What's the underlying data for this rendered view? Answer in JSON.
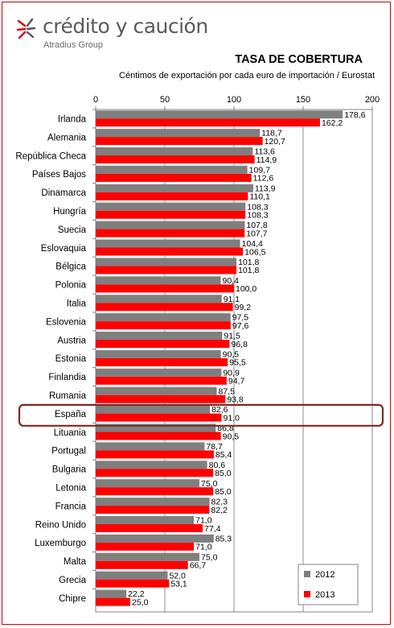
{
  "brand": {
    "name": "crédito y caución",
    "group": "Atradius Group"
  },
  "colors": {
    "s2012": "#7f7f7f",
    "s2013": "#ff0000",
    "brand_red": "#e30613",
    "highlight": "#7b2a25"
  },
  "chart_data": {
    "type": "bar",
    "orientation": "horizontal",
    "title": "TASA DE COBERTURA",
    "subtitle": "Céntimos de exportación por cada euro de importación / Eurostat",
    "xlim": [
      0,
      200
    ],
    "xticks": [
      0,
      50,
      100,
      150,
      200
    ],
    "xtick_labels": [
      "0",
      "50",
      "100",
      "150",
      "200"
    ],
    "grid": true,
    "legend_position": "bottom-right",
    "highlighted_category": "España",
    "categories": [
      "Irlanda",
      "Alemania",
      "República Checa",
      "Países Bajos",
      "Dinamarca",
      "Hungría",
      "Suecia",
      "Eslovaquia",
      "Bélgica",
      "Polonia",
      "Italia",
      "Eslovenia",
      "Austria",
      "Estonia",
      "Finlandia",
      "Rumania",
      "España",
      "Lituania",
      "Portugal",
      "Bulgaria",
      "Letonia",
      "Francia",
      "Reino Unido",
      "Luxemburgo",
      "Malta",
      "Grecia",
      "Chipre"
    ],
    "series": [
      {
        "name": "2012",
        "values": [
          178.6,
          118.7,
          113.6,
          109.7,
          113.9,
          108.3,
          107.8,
          104.4,
          101.8,
          90.4,
          91.1,
          97.5,
          91.5,
          90.5,
          90.9,
          87.5,
          82.6,
          86.8,
          78.7,
          80.6,
          75.0,
          82.3,
          71.0,
          85.3,
          75.0,
          52.0,
          22.2
        ]
      },
      {
        "name": "2013",
        "values": [
          162.2,
          120.7,
          114.9,
          112.6,
          110.1,
          108.3,
          107.7,
          106.5,
          101.8,
          100.0,
          99.2,
          97.6,
          96.8,
          95.5,
          94.7,
          93.8,
          91.0,
          90.5,
          85.4,
          85.0,
          85.0,
          82.2,
          77.4,
          71.0,
          66.7,
          53.1,
          25.0
        ]
      }
    ],
    "value_labels": [
      [
        "178,6",
        "118,7",
        "113,6",
        "109,7",
        "113,9",
        "108,3",
        "107,8",
        "104,4",
        "101,8",
        "90,4",
        "91,1",
        "97,5",
        "91,5",
        "90,5",
        "90,9",
        "87,5",
        "82,6",
        "86,8",
        "78,7",
        "80,6",
        "75,0",
        "82,3",
        "71,0",
        "85,3",
        "75,0",
        "52,0",
        "22,2"
      ],
      [
        "162,2",
        "120,7",
        "114,9",
        "112,6",
        "110,1",
        "108,3",
        "107,7",
        "106,5",
        "101,8",
        "100,0",
        "99,2",
        "97,6",
        "96,8",
        "95,5",
        "94,7",
        "93,8",
        "91,0",
        "90,5",
        "85,4",
        "85,0",
        "85,0",
        "82,2",
        "77,4",
        "71,0",
        "66,7",
        "53,1",
        "25,0"
      ]
    ]
  }
}
